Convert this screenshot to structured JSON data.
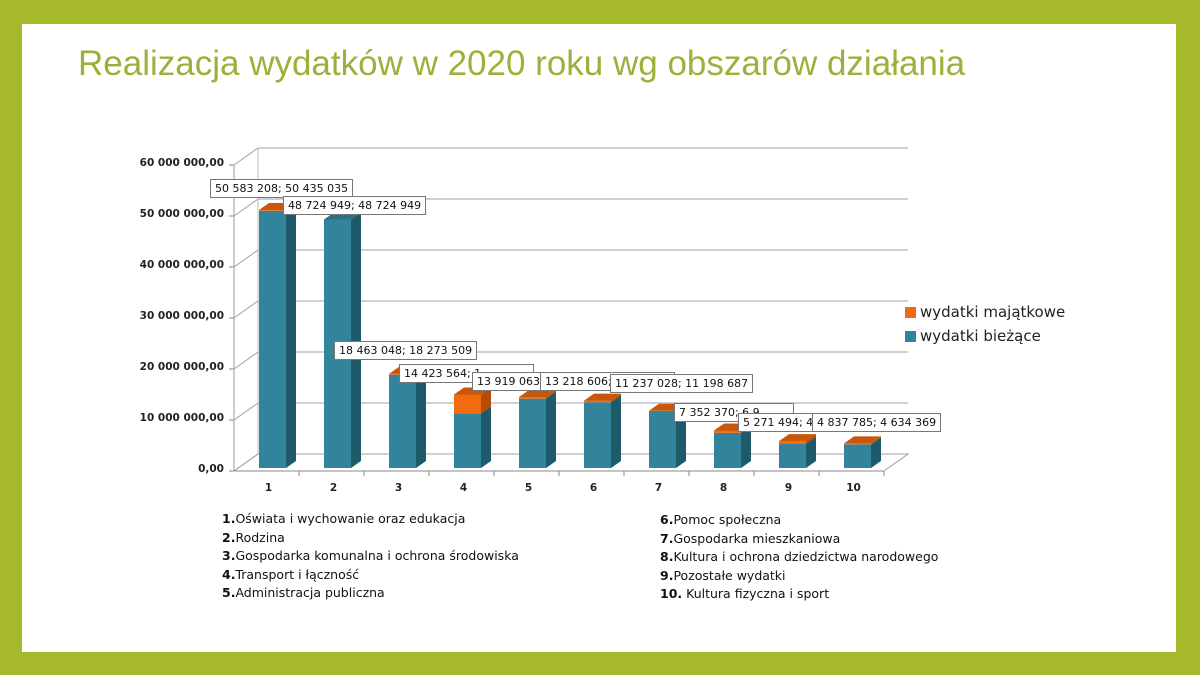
{
  "title": "Realizacja wydatków w 2020 roku wg obszarów działania",
  "colors": {
    "frame": "#a5b92a",
    "title": "#9bb23a",
    "biezace": "#31849b",
    "majatkowe": "#f26b0f"
  },
  "legend": [
    {
      "label": "wydatki majątkowe",
      "color": "#f26b0f"
    },
    {
      "label": "wydatki bieżące",
      "color": "#31849b"
    }
  ],
  "y_ticks": [
    "60 000 000,00",
    "50 000 000,00",
    "40 000 000,00",
    "30 000 000,00",
    "20 000 000,00",
    "10 000 000,00",
    "0,00"
  ],
  "x_ticks": [
    "1",
    "2",
    "3",
    "4",
    "5",
    "6",
    "7",
    "8",
    "9",
    "10"
  ],
  "data_labels": [
    "50 583 208; 50 435 035",
    "48 724 949; 48 724 949",
    "18 463 048; 18 273 509",
    "14 423 564; 1",
    "13 919 063; 1",
    "13 218 606; 1",
    "11 237 028; 11 198 687",
    "7 352 370; 6 9",
    "5 271 494; 4",
    "4 837 785; 4 634 369"
  ],
  "categories_left": [
    {
      "num": "1.",
      "text": "Oświata i wychowanie oraz edukacja"
    },
    {
      "num": "2.",
      "text": "Rodzina"
    },
    {
      "num": "3.",
      "text": "Gospodarka komunalna  i ochrona środowiska"
    },
    {
      "num": "4.",
      "text": "Transport i łączność"
    },
    {
      "num": "5.",
      "text": "Administracja publiczna"
    }
  ],
  "categories_right": [
    {
      "num": "6.",
      "text": "Pomoc  społeczna"
    },
    {
      "num": "7.",
      "text": "Gospodarka mieszkaniowa"
    },
    {
      "num": "8.",
      "text": "Kultura i ochrona dziedzictwa narodowego"
    },
    {
      "num": "9.",
      "text": "Pozostałe wydatki"
    },
    {
      "num": "10.",
      "text": " Kultura fizyczna i sport"
    }
  ],
  "chart_data": {
    "type": "bar",
    "stacked": true,
    "style": "3d-column",
    "title": "Realizacja wydatków w 2020 roku wg obszarów działania",
    "xlabel": "",
    "ylabel": "",
    "ylim": [
      0,
      60000000
    ],
    "y_tick_labels": [
      "0,00",
      "10 000 000,00",
      "20 000 000,00",
      "30 000 000,00",
      "40 000 000,00",
      "50 000 000,00",
      "60 000 000,00"
    ],
    "categories": [
      "1",
      "2",
      "3",
      "4",
      "5",
      "6",
      "7",
      "8",
      "9",
      "10"
    ],
    "category_names": [
      "Oświata i wychowanie oraz edukacja",
      "Rodzina",
      "Gospodarka komunalna i ochrona środowiska",
      "Transport i łączność",
      "Administracja publiczna",
      "Pomoc społeczna",
      "Gospodarka mieszkaniowa",
      "Kultura i ochrona dziedzictwa narodowego",
      "Pozostałe wydatki",
      "Kultura fizyczna i sport"
    ],
    "totals": [
      50583208,
      48724949,
      18463048,
      14423564,
      13919063,
      13218606,
      11237028,
      7352370,
      5271494,
      4837785
    ],
    "series": [
      {
        "name": "wydatki bieżące",
        "values": [
          50435035,
          48724949,
          18273509,
          10700000,
          13600000,
          12900000,
          11198687,
          6900000,
          4700000,
          4634369
        ]
      },
      {
        "name": "wydatki majątkowe",
        "values": [
          148173,
          0,
          189539,
          3723564,
          319063,
          318606,
          38341,
          452370,
          571494,
          203416
        ]
      }
    ],
    "legend_position": "right",
    "grid": true
  }
}
